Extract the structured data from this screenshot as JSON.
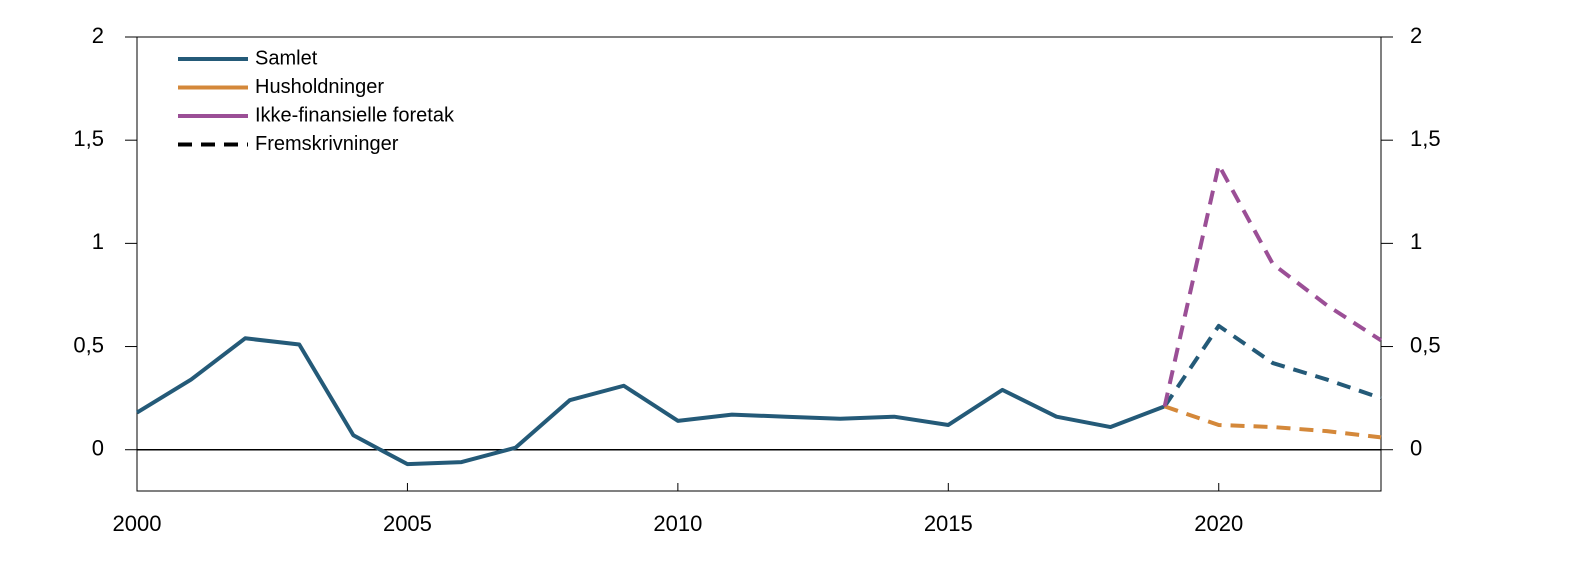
{
  "chart_data": {
    "type": "line",
    "x": [
      2000,
      2001,
      2002,
      2003,
      2004,
      2005,
      2006,
      2007,
      2008,
      2009,
      2010,
      2011,
      2012,
      2013,
      2014,
      2015,
      2016,
      2017,
      2018,
      2019,
      2020,
      2021,
      2022,
      2023
    ],
    "xlim": [
      2000,
      2023
    ],
    "xticks": [
      2000,
      2005,
      2010,
      2015,
      2020
    ],
    "ylim": [
      -0.2,
      2
    ],
    "yticks": [
      0,
      {
        "value": 0.5,
        "label": "0,5"
      },
      1,
      {
        "value": 1.5,
        "label": "1,5"
      },
      2
    ],
    "series": [
      {
        "name": "Samlet",
        "color": "#245a78",
        "values": [
          0.18,
          0.34,
          0.54,
          0.51,
          0.07,
          -0.07,
          -0.06,
          0.01,
          0.24,
          0.31,
          0.14,
          0.17,
          0.16,
          0.15,
          0.16,
          0.12,
          0.29,
          0.16,
          0.11,
          0.21,
          null,
          null,
          null,
          null
        ],
        "projection_values": [
          null,
          null,
          null,
          null,
          null,
          null,
          null,
          null,
          null,
          null,
          null,
          null,
          null,
          null,
          null,
          null,
          null,
          null,
          null,
          0.21,
          0.6,
          0.42,
          0.34,
          0.25
        ]
      },
      {
        "name": "Husholdninger",
        "color": "#d4883a",
        "values": [
          null,
          null,
          null,
          null,
          null,
          null,
          null,
          null,
          null,
          null,
          null,
          null,
          null,
          null,
          null,
          null,
          null,
          null,
          null,
          null,
          null,
          null,
          null,
          null
        ],
        "projection_values": [
          null,
          null,
          null,
          null,
          null,
          null,
          null,
          null,
          null,
          null,
          null,
          null,
          null,
          null,
          null,
          null,
          null,
          null,
          null,
          0.21,
          0.12,
          0.11,
          0.09,
          0.06
        ]
      },
      {
        "name": "Ikke-finansielle foretak",
        "color": "#9b4f96",
        "values": [
          null,
          null,
          null,
          null,
          null,
          null,
          null,
          null,
          null,
          null,
          null,
          null,
          null,
          null,
          null,
          null,
          null,
          null,
          null,
          null,
          null,
          null,
          null,
          null
        ],
        "projection_values": [
          null,
          null,
          null,
          null,
          null,
          null,
          null,
          null,
          null,
          null,
          null,
          null,
          null,
          null,
          null,
          null,
          null,
          null,
          null,
          0.21,
          1.38,
          0.9,
          0.7,
          0.53
        ]
      }
    ],
    "projection_legend": {
      "name": "Fremskrivninger",
      "color": "#000000"
    }
  }
}
